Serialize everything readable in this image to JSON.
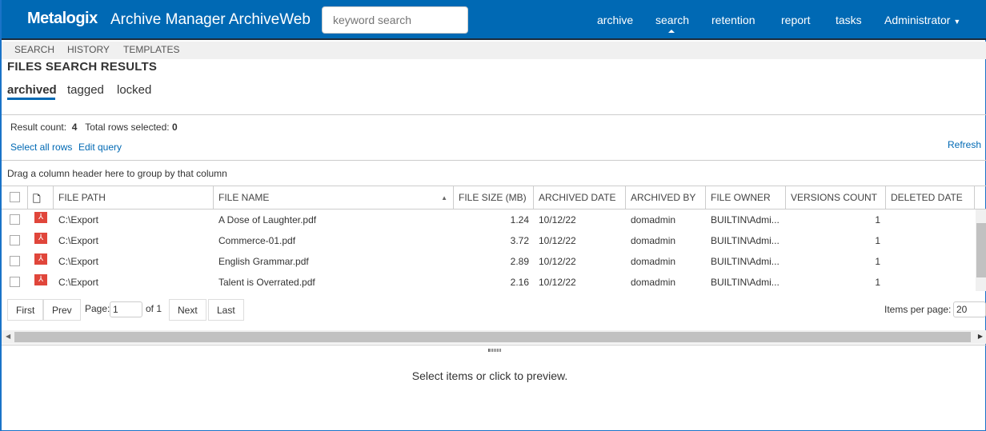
{
  "header": {
    "logo": "Metalogix",
    "app_title": "Archive Manager ArchiveWeb",
    "search_placeholder": "keyword search",
    "nav": [
      "archive",
      "search",
      "retention",
      "report",
      "tasks"
    ],
    "user": "Administrator",
    "brand_color": "#0069b4"
  },
  "subnav": [
    "SEARCH",
    "HISTORY",
    "TEMPLATES"
  ],
  "page_title": "FILES SEARCH RESULTS",
  "tabs": [
    "archived",
    "tagged",
    "locked"
  ],
  "summary": {
    "result_count_label": "Result count:",
    "result_count": "4",
    "rows_selected_label": "Total rows selected:",
    "rows_selected": "0",
    "select_all": "Select all rows",
    "edit_query": "Edit query",
    "refresh": "Refresh"
  },
  "group_hint": "Drag a column header here to group by that column",
  "columns": [
    "FILE PATH",
    "FILE NAME",
    "FILE SIZE (MB)",
    "ARCHIVED DATE",
    "ARCHIVED BY",
    "FILE OWNER",
    "VERSIONS COUNT",
    "DELETED DATE"
  ],
  "rows": [
    {
      "path": "C:\\Export",
      "name": "A Dose of Laughter.pdf",
      "size": "1.24",
      "date": "10/12/22",
      "by": "domadmin",
      "owner": "BUILTIN\\Admi...",
      "versions": "1",
      "deleted": ""
    },
    {
      "path": "C:\\Export",
      "name": "Commerce-01.pdf",
      "size": "3.72",
      "date": "10/12/22",
      "by": "domadmin",
      "owner": "BUILTIN\\Admi...",
      "versions": "1",
      "deleted": ""
    },
    {
      "path": "C:\\Export",
      "name": "English Grammar.pdf",
      "size": "2.89",
      "date": "10/12/22",
      "by": "domadmin",
      "owner": "BUILTIN\\Admi...",
      "versions": "1",
      "deleted": ""
    },
    {
      "path": "C:\\Export",
      "name": "Talent is Overrated.pdf",
      "size": "2.16",
      "date": "10/12/22",
      "by": "domadmin",
      "owner": "BUILTIN\\Admi...",
      "versions": "1",
      "deleted": ""
    }
  ],
  "pager": {
    "first": "First",
    "prev": "Prev",
    "page_label": "Page:",
    "page": "1",
    "of": "of 1",
    "next": "Next",
    "last": "Last",
    "items_label": "Items per page:",
    "items": "20"
  },
  "preview_text": "Select items or click to preview."
}
